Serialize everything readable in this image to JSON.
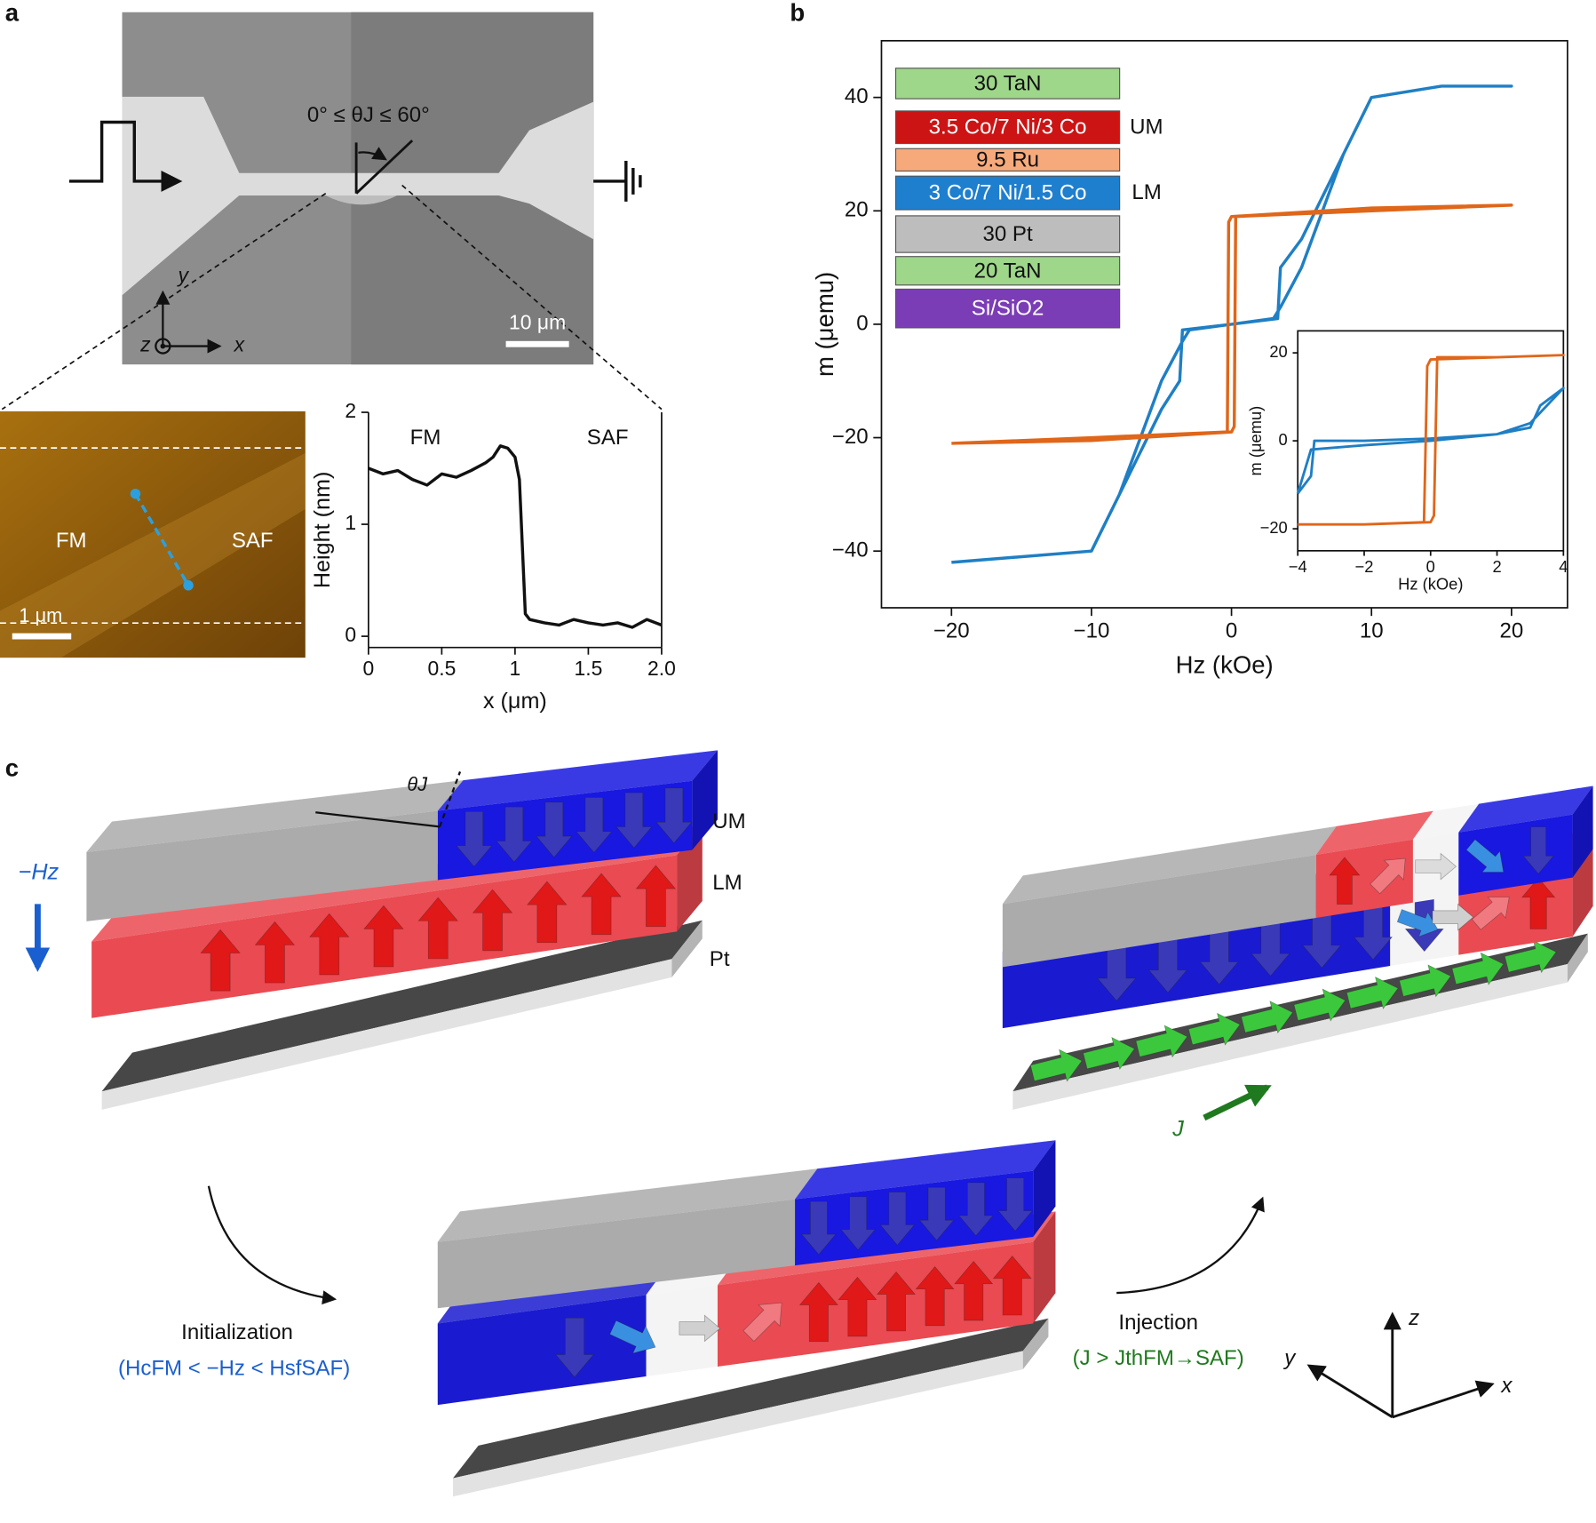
{
  "panel_a": {
    "letter": "a",
    "angle_label": "0° ≤ θJ ≤ 60°",
    "scale_bar": "10 μm",
    "axes": {
      "x": "x",
      "y": "y",
      "z": "z"
    },
    "afm": {
      "left": "FM",
      "right": "SAF",
      "scale_bar": "1 μm"
    }
  },
  "panel_b": {
    "letter": "b",
    "layers": [
      {
        "text": "30 TaN",
        "color": "#9ed68a"
      },
      {
        "text": "3.5 Co/7 Ni/3 Co",
        "color": "#cc1414"
      },
      {
        "text": "9.5 Ru",
        "color": "#f6aa7c"
      },
      {
        "text": "3 Co/7 Ni/1.5 Co",
        "color": "#1e7fcf"
      },
      {
        "text": "30 Pt",
        "color": "#bdbdbd"
      },
      {
        "text": "20 TaN",
        "color": "#9ed68a"
      },
      {
        "text": "Si/SiO2",
        "color": "#7b3db5"
      }
    ],
    "tags": [
      "UM",
      "LM"
    ]
  },
  "panel_c": {
    "letter": "c",
    "theta": "θJ",
    "layer_labels": [
      "UM",
      "LM",
      "Pt"
    ],
    "field": "−Hz",
    "current": "J",
    "initialization": "Initialization",
    "init_condition": "(HcFM < −Hz < HsfSAF)",
    "injection": "Injection",
    "inj_condition": "(J > JthFM→SAF)",
    "axes": {
      "z": "z",
      "y": "y",
      "x": "x"
    }
  },
  "chart_data": [
    {
      "type": "line",
      "xlabel": "x (μm)",
      "ylabel": "Height (nm)",
      "annotations": [
        "FM",
        "SAF"
      ],
      "xlim": [
        0,
        2
      ],
      "ylim": [
        -0.1,
        2
      ],
      "xticks": [
        0,
        0.5,
        1,
        1.5,
        {
          "value": 2,
          "label": "2.0"
        }
      ],
      "yticks": [
        0,
        1,
        2
      ],
      "series": [
        {
          "color": "#111111",
          "x": [
            0,
            0.1,
            0.2,
            0.3,
            0.4,
            0.5,
            0.6,
            0.7,
            0.8,
            0.85,
            0.9,
            0.95,
            1.0,
            1.03,
            1.05,
            1.07,
            1.1,
            1.2,
            1.3,
            1.4,
            1.5,
            1.6,
            1.7,
            1.8,
            1.9,
            2.0
          ],
          "values": [
            1.5,
            1.45,
            1.48,
            1.4,
            1.35,
            1.45,
            1.42,
            1.48,
            1.55,
            1.6,
            1.7,
            1.68,
            1.6,
            1.4,
            0.8,
            0.2,
            0.15,
            0.12,
            0.1,
            0.15,
            0.12,
            0.1,
            0.12,
            0.08,
            0.15,
            0.1
          ]
        }
      ]
    },
    {
      "type": "line",
      "xlabel": "Hz (kOe)",
      "ylabel": "m (μemu)",
      "xlim": [
        -25,
        24
      ],
      "ylim": [
        -50,
        50
      ],
      "xticks": [
        {
          "value": -20,
          "label": "−20"
        },
        {
          "value": -10,
          "label": "−10"
        },
        0,
        10,
        20
      ],
      "yticks": [
        {
          "value": -40,
          "label": "−40"
        },
        {
          "value": -20,
          "label": "−20"
        },
        0,
        20,
        40
      ],
      "series": [
        {
          "color": "#1f7fc4",
          "x": [
            -20,
            -10,
            -8,
            -5,
            -3.7,
            -3.5,
            0,
            3,
            3.5,
            5,
            8,
            10,
            15,
            20,
            15,
            10,
            8,
            5,
            3.5,
            3.3,
            0,
            -3,
            -3.5,
            -5,
            -8,
            -10,
            -20
          ],
          "values": [
            -42,
            -40,
            -30,
            -15,
            -10,
            -1,
            0,
            1,
            3,
            10,
            30,
            40,
            42,
            42,
            42,
            40,
            30,
            15,
            10,
            1,
            0,
            -1,
            -3,
            -10,
            -30,
            -40,
            -42
          ]
        },
        {
          "color": "#e0661a",
          "x": [
            -20,
            -10,
            0,
            0.2,
            0.3,
            10,
            20,
            10,
            0,
            -0.2,
            -0.3,
            -10,
            -20
          ],
          "values": [
            -21,
            -20.5,
            -19,
            -18,
            19,
            20,
            21,
            20.5,
            19,
            18,
            -19,
            -20,
            -21
          ]
        }
      ]
    },
    {
      "type": "line",
      "xlabel": "Hz (kOe)",
      "ylabel": "m (μemu)",
      "xlim": [
        -4,
        4
      ],
      "ylim": [
        -25,
        25
      ],
      "xticks": [
        {
          "value": -4,
          "label": "−4"
        },
        {
          "value": -2,
          "label": "−2"
        },
        0,
        2,
        4
      ],
      "yticks": [
        {
          "value": -20,
          "label": "−20"
        },
        0,
        20
      ],
      "series": [
        {
          "color": "#1f7fc4",
          "x": [
            -4,
            -3.6,
            -3.5,
            -2,
            0,
            2,
            3,
            3.3,
            4,
            3,
            2,
            0,
            -2,
            -3.6,
            -4
          ],
          "values": [
            -12,
            -8,
            0,
            0,
            0.5,
            1.5,
            3,
            8,
            12,
            4,
            1.5,
            0,
            -1,
            -2,
            -12
          ]
        },
        {
          "color": "#e0661a",
          "x": [
            -4,
            -2,
            0,
            0.1,
            0.2,
            2,
            4,
            2,
            0,
            -0.1,
            -0.2,
            -2,
            -4
          ],
          "values": [
            -19,
            -19,
            -18.5,
            -17,
            19,
            19,
            19.5,
            19,
            18.5,
            17,
            -18.5,
            -19,
            -19
          ]
        }
      ]
    }
  ]
}
